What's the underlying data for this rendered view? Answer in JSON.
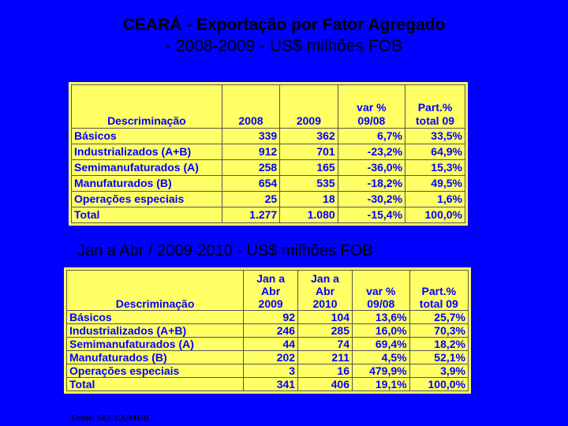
{
  "title": {
    "line1": "CEARÁ - Exportação por Fator Agregado",
    "line2": "- 2008-2009 - US$ milhões FOB"
  },
  "table1": {
    "headers": [
      "Descriminação",
      "2008",
      "2009",
      "var %\n09/08",
      "Part.%\ntotal 09"
    ],
    "rows": [
      [
        "Básicos",
        "339",
        "362",
        "6,7%",
        "33,5%"
      ],
      [
        "Industrializados (A+B)",
        "912",
        "701",
        "-23,2%",
        "64,9%"
      ],
      [
        "Semimanufaturados (A)",
        "258",
        "165",
        "-36,0%",
        "15,3%"
      ],
      [
        "Manufaturados (B)",
        "654",
        "535",
        "-18,2%",
        "49,5%"
      ],
      [
        "Operações especiais",
        "25",
        "18",
        "-30,2%",
        "1,6%"
      ],
      [
        "Total",
        "1.277",
        "1.080",
        "-15,4%",
        "100,0%"
      ]
    ]
  },
  "subtitle": "Jan a Abr / 2009-2010 - US$ milhões FOB",
  "table2": {
    "headers": [
      "Descriminação",
      "Jan a\nAbr\n2009",
      "Jan a\nAbr\n2010",
      "var %\n09/08",
      "Part.%\ntotal 09"
    ],
    "rows": [
      [
        "Básicos",
        "92",
        "104",
        "13,6%",
        "25,7%"
      ],
      [
        "Industrializados (A+B)",
        "246",
        "285",
        "16,0%",
        "70,3%"
      ],
      [
        "Semimanufaturados (A)",
        "44",
        "74",
        "69,4%",
        "18,2%"
      ],
      [
        "Manufaturados (B)",
        "202",
        "211",
        "4,5%",
        "52,1%"
      ],
      [
        "Operações especiais",
        "3",
        "16",
        "479,9%",
        "3,9%"
      ],
      [
        "Total",
        "341",
        "406",
        "19,1%",
        "100,0%"
      ]
    ]
  },
  "source": "Fonte: SECEX/MDIC",
  "colors": {
    "background": "#0000FF",
    "table_fill": "#FFFF66",
    "table_text": "#0000FF"
  }
}
